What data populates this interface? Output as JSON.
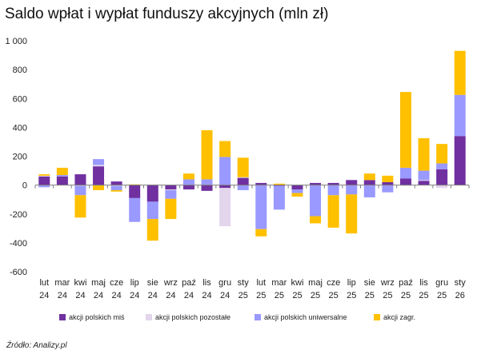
{
  "chart_data": {
    "type": "bar",
    "stacked": true,
    "title": "Saldo wpłat i wypłat funduszy akcyjnych (mln zł)",
    "source": "Źródło: Analizy.pl",
    "ylim": [
      -600,
      1000
    ],
    "yticks": [
      -600,
      -400,
      -200,
      0,
      200,
      400,
      600,
      800,
      1000
    ],
    "ytick_labels": [
      "-600",
      "-400",
      "-200",
      "0",
      "200",
      "400",
      "600",
      "800",
      "1 000"
    ],
    "categories": [
      [
        "lut",
        "24"
      ],
      [
        "mar",
        "24"
      ],
      [
        "kwi",
        "24"
      ],
      [
        "maj",
        "24"
      ],
      [
        "cze",
        "24"
      ],
      [
        "lip",
        "24"
      ],
      [
        "sie",
        "24"
      ],
      [
        "wrz",
        "24"
      ],
      [
        "paź",
        "24"
      ],
      [
        "lis",
        "24"
      ],
      [
        "gru",
        "24"
      ],
      [
        "sty",
        "25"
      ],
      [
        "lut",
        "25"
      ],
      [
        "mar",
        "25"
      ],
      [
        "kwi",
        "25"
      ],
      [
        "maj",
        "25"
      ],
      [
        "cze",
        "25"
      ],
      [
        "lip",
        "25"
      ],
      [
        "sie",
        "25"
      ],
      [
        "wrz",
        "25"
      ],
      [
        "paź",
        "25"
      ],
      [
        "lis",
        "25"
      ],
      [
        "gru",
        "25"
      ],
      [
        "sty",
        "26"
      ]
    ],
    "series": [
      {
        "name": "akcji polskich miś",
        "color": "#7030a0",
        "values": [
          60,
          60,
          75,
          130,
          25,
          -90,
          -115,
          -30,
          -30,
          -40,
          -20,
          50,
          15,
          -5,
          -30,
          15,
          15,
          35,
          35,
          20,
          45,
          30,
          110,
          340
        ]
      },
      {
        "name": "akcji polskich pozostałe",
        "color": "#e2d5ec",
        "values": [
          5,
          0,
          -5,
          10,
          -5,
          0,
          5,
          -5,
          0,
          0,
          -265,
          5,
          0,
          0,
          0,
          0,
          0,
          0,
          0,
          0,
          -5,
          5,
          -20,
          0
        ]
      },
      {
        "name": "akcji polskich uniwersalne",
        "color": "#9999ff",
        "values": [
          -15,
          10,
          -65,
          40,
          -30,
          -165,
          -120,
          -60,
          40,
          40,
          195,
          -35,
          -305,
          -165,
          -25,
          -215,
          -70,
          -65,
          -85,
          -50,
          75,
          65,
          40,
          285
        ]
      },
      {
        "name": "akcji zagr.",
        "color": "#ffc000",
        "values": [
          10,
          50,
          -155,
          -35,
          -10,
          5,
          -150,
          -140,
          40,
          340,
          110,
          135,
          -50,
          10,
          -25,
          -50,
          -225,
          -270,
          45,
          45,
          525,
          225,
          135,
          305
        ]
      }
    ],
    "grid": false,
    "legend_position": "bottom"
  }
}
